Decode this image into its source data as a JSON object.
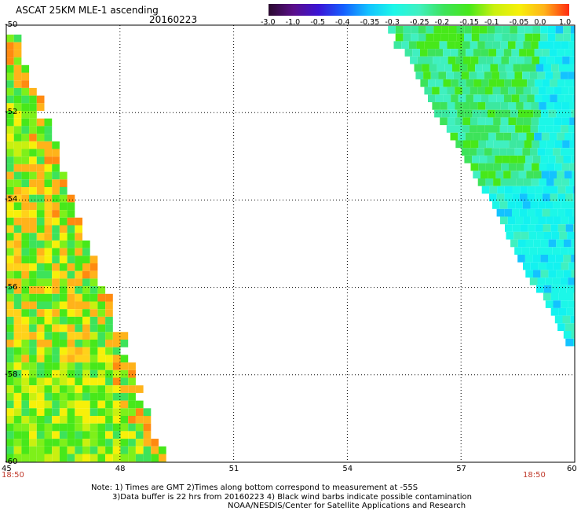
{
  "header": {
    "title": "ASCAT 25KM MLE-1 ascending",
    "date": "20160223"
  },
  "colorbar": {
    "labels": [
      "-3.0",
      "-1.0",
      "-0.5",
      "-0.4",
      "-0.35",
      "-0.3",
      "-0.25",
      "-0.2",
      "-0.15",
      "-0.1",
      "-0.05",
      "0.0",
      "1.0"
    ],
    "colors": [
      "#2a0a2e",
      "#5b0f8a",
      "#3a14d6",
      "#1560ff",
      "#13c3ff",
      "#1cf7e8",
      "#40f0c0",
      "#3de35a",
      "#47e81a",
      "#c9f010",
      "#f7f00a",
      "#ffb31a",
      "#ff2a10"
    ]
  },
  "map": {
    "lat_labels": [
      "-50",
      "-52",
      "-54",
      "-56",
      "-58",
      "-60"
    ],
    "lon_labels": [
      "45",
      "48",
      "51",
      "54",
      "57",
      "60"
    ]
  },
  "time_left": "18:50",
  "time_right": "18:50",
  "notes": [
    "Note: 1) Times are GMT 2)Times along bottom correspond to measurement at -55S",
    "3)Data buffer is 22 hrs from 20160223 4) Black wind barbs indicate possible contamination",
    "NOAA/NESDIS/Center for Satellite Applications and Research"
  ]
}
